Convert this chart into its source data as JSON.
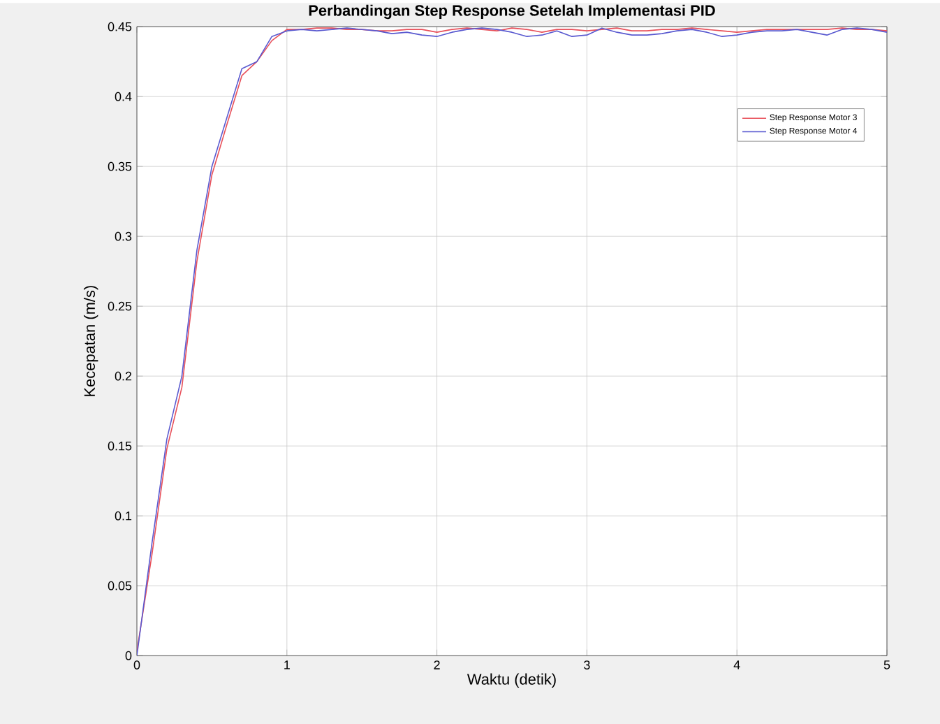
{
  "chart_data": {
    "type": "line",
    "title": "Perbandingan Step Response Setelah Implementasi PID",
    "xlabel": "Waktu (detik)",
    "ylabel": "Kecepatan (m/s)",
    "x": [
      0,
      0.1,
      0.2,
      0.3,
      0.4,
      0.5,
      0.6,
      0.7,
      0.8,
      0.9,
      1.0,
      1.1,
      1.2,
      1.3,
      1.4,
      1.5,
      1.6,
      1.7,
      1.8,
      1.9,
      2.0,
      2.1,
      2.2,
      2.3,
      2.4,
      2.5,
      2.6,
      2.7,
      2.8,
      2.9,
      3.0,
      3.1,
      3.2,
      3.3,
      3.4,
      3.5,
      3.6,
      3.7,
      3.8,
      3.9,
      4.0,
      4.1,
      4.2,
      4.3,
      4.4,
      4.5,
      4.6,
      4.7,
      4.8,
      4.9,
      5.0
    ],
    "series": [
      {
        "name": "Step Response Motor 3",
        "color": "#e8505a",
        "values": [
          0.003,
          0.072,
          0.148,
          0.192,
          0.282,
          0.344,
          0.38,
          0.415,
          0.425,
          0.44,
          0.448,
          0.448,
          0.449,
          0.449,
          0.448,
          0.448,
          0.447,
          0.447,
          0.448,
          0.448,
          0.446,
          0.448,
          0.449,
          0.448,
          0.447,
          0.449,
          0.448,
          0.446,
          0.448,
          0.448,
          0.447,
          0.448,
          0.449,
          0.447,
          0.447,
          0.448,
          0.448,
          0.449,
          0.448,
          0.447,
          0.446,
          0.447,
          0.448,
          0.448,
          0.448,
          0.448,
          0.448,
          0.449,
          0.448,
          0.448,
          0.447
        ]
      },
      {
        "name": "Step Response Motor 4",
        "color": "#5a5ad0",
        "values": [
          0,
          0.08,
          0.155,
          0.2,
          0.29,
          0.35,
          0.385,
          0.42,
          0.425,
          0.443,
          0.447,
          0.448,
          0.447,
          0.448,
          0.449,
          0.448,
          0.447,
          0.445,
          0.446,
          0.444,
          0.443,
          0.446,
          0.448,
          0.449,
          0.448,
          0.446,
          0.443,
          0.444,
          0.447,
          0.443,
          0.444,
          0.449,
          0.446,
          0.444,
          0.444,
          0.445,
          0.447,
          0.448,
          0.446,
          0.443,
          0.444,
          0.446,
          0.447,
          0.447,
          0.448,
          0.446,
          0.444,
          0.448,
          0.449,
          0.448,
          0.446
        ]
      }
    ],
    "xlim": [
      0,
      5
    ],
    "xticks": [
      0,
      1,
      2,
      3,
      4,
      5
    ],
    "ylim": [
      0,
      0.45
    ],
    "yticks": [
      0,
      0.05,
      0.1,
      0.15,
      0.2,
      0.25,
      0.3,
      0.35,
      0.4,
      0.45
    ],
    "grid": true,
    "legend": "top right",
    "marker": "none",
    "line_style": "solid"
  }
}
